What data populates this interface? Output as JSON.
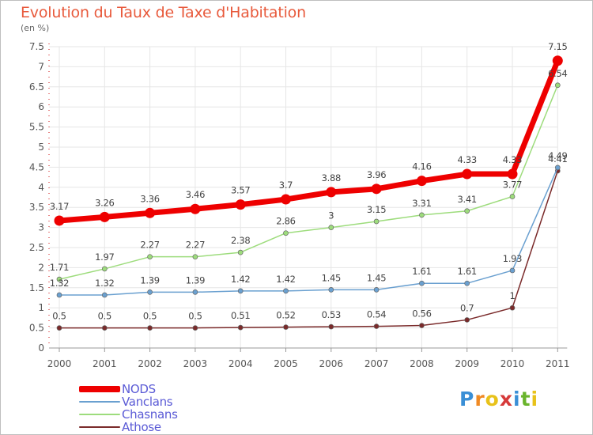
{
  "chart_data": {
    "type": "line",
    "title": "Evolution du Taux de Taxe d'Habitation",
    "subtitle": "(en %)",
    "x": [
      "2000",
      "2001",
      "2002",
      "2003",
      "2004",
      "2005",
      "2006",
      "2007",
      "2008",
      "2009",
      "2010",
      "2011"
    ],
    "ylim": [
      0,
      7.5
    ],
    "yticks": [
      "0",
      "0.5",
      "1",
      "1.5",
      "2",
      "2.5",
      "3",
      "3.5",
      "4",
      "4.5",
      "5",
      "5.5",
      "6",
      "6.5",
      "7",
      "7.5"
    ],
    "grid": true,
    "legend_position": "bottom-left",
    "series": [
      {
        "name": "NODS",
        "color": "#ee0000",
        "values": [
          3.17,
          3.26,
          3.36,
          3.46,
          3.57,
          3.7,
          3.88,
          3.96,
          4.16,
          4.33,
          4.33,
          7.15
        ]
      },
      {
        "name": "Vanclans",
        "color": "#6aa0d0",
        "values": [
          1.32,
          1.32,
          1.39,
          1.39,
          1.42,
          1.42,
          1.45,
          1.45,
          1.61,
          1.61,
          1.93,
          4.49
        ]
      },
      {
        "name": "Chasnans",
        "color": "#9ddc7c",
        "values": [
          1.71,
          1.97,
          2.27,
          2.27,
          2.38,
          2.86,
          3,
          3.15,
          3.31,
          3.41,
          3.77,
          6.54
        ]
      },
      {
        "name": "Athose",
        "color": "#7a2a2a",
        "values": [
          0.5,
          0.5,
          0.5,
          0.5,
          0.51,
          0.52,
          0.53,
          0.54,
          0.56,
          0.7,
          1,
          4.41
        ]
      }
    ]
  },
  "logo": {
    "letters": [
      "P",
      "r",
      "o",
      "x",
      "i",
      "t",
      "i"
    ],
    "colors": [
      "#3a8fd6",
      "#f08a24",
      "#e8c21a",
      "#d63a3a",
      "#3a8fd6",
      "#6ab42c",
      "#e8c21a"
    ]
  }
}
